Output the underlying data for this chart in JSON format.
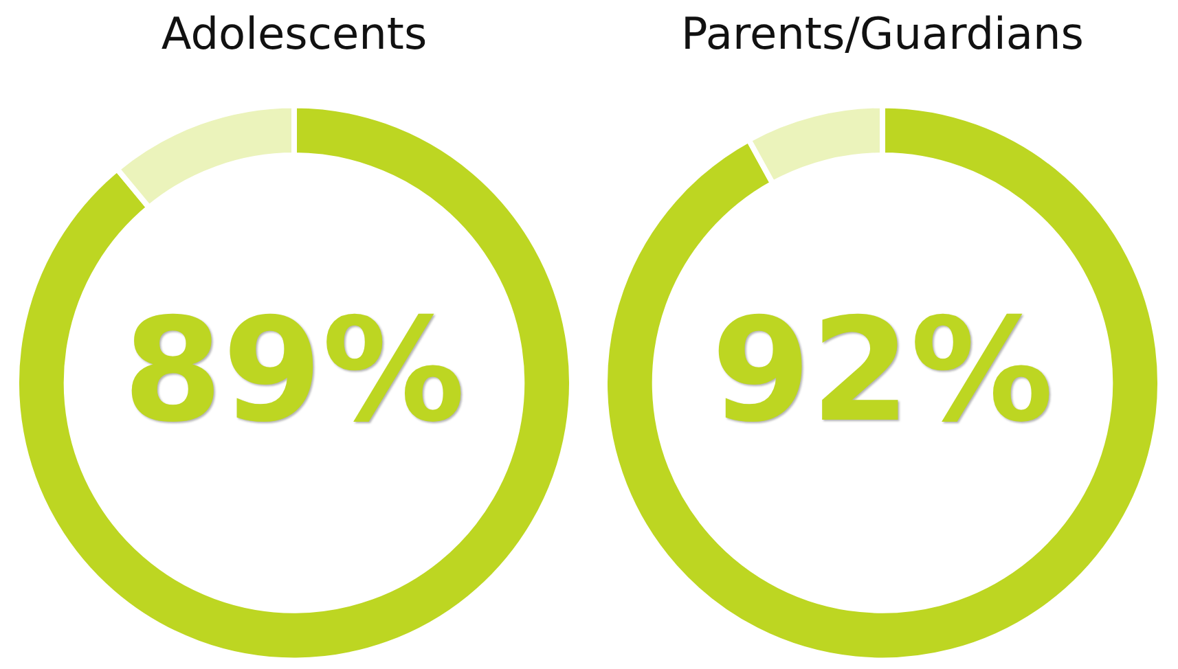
{
  "chart_data": [
    {
      "type": "donut",
      "title": "Adolescents",
      "categories": [
        null,
        null
      ],
      "values": [
        89,
        11
      ],
      "colors": [
        "#bdd622",
        "#ebf3bb"
      ],
      "value_labels": [
        "89%",
        null
      ]
    },
    {
      "type": "donut",
      "title": "Parents/Guardians",
      "categories": [
        null,
        null
      ],
      "values": [
        92,
        8
      ],
      "colors": [
        "#bdd622",
        "#ebf3bb"
      ],
      "value_labels": [
        "92%",
        null
      ]
    }
  ]
}
